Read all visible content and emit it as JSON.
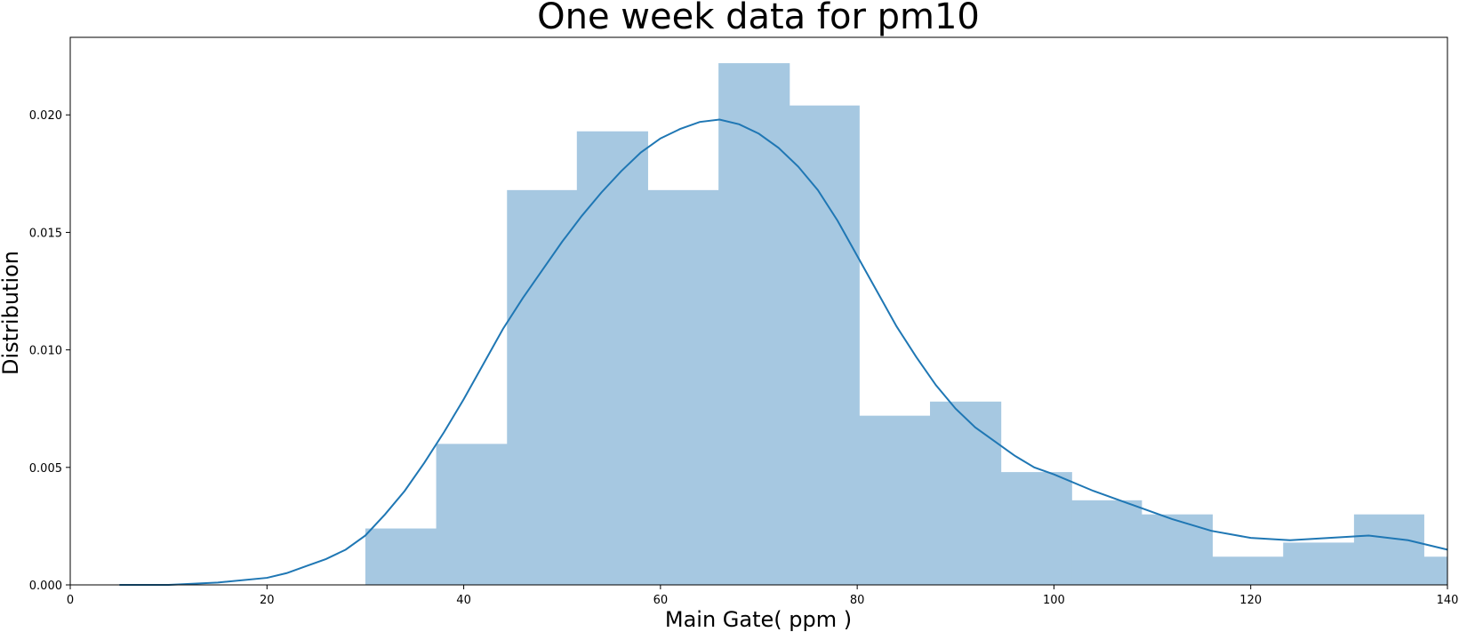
{
  "chart_data": {
    "type": "bar",
    "title": "One week data for pm10",
    "xlabel": "Main Gate( ppm )",
    "ylabel": "Distribution",
    "xlim": [
      0,
      140
    ],
    "ylim": [
      0,
      0.0233
    ],
    "x_ticks": [
      "0",
      "20",
      "40",
      "60",
      "80",
      "100",
      "120",
      "140"
    ],
    "y_ticks": [
      "0.000",
      "0.005",
      "0.010",
      "0.015",
      "0.020"
    ],
    "grid": false,
    "legend": "none",
    "bar_color": "#a6c8e1",
    "line_color": "#1f77b4",
    "histogram": [
      {
        "x0": 30.0,
        "x1": 37.2,
        "density": 0.0024
      },
      {
        "x0": 37.2,
        "x1": 44.4,
        "density": 0.006
      },
      {
        "x0": 44.4,
        "x1": 51.5,
        "density": 0.0168
      },
      {
        "x0": 51.5,
        "x1": 58.7,
        "density": 0.0193
      },
      {
        "x0": 58.7,
        "x1": 65.9,
        "density": 0.0168
      },
      {
        "x0": 65.9,
        "x1": 73.1,
        "density": 0.0222
      },
      {
        "x0": 73.1,
        "x1": 80.2,
        "density": 0.0204
      },
      {
        "x0": 80.2,
        "x1": 87.4,
        "density": 0.0072
      },
      {
        "x0": 87.4,
        "x1": 94.6,
        "density": 0.0078
      },
      {
        "x0": 94.6,
        "x1": 101.8,
        "density": 0.0048
      },
      {
        "x0": 101.8,
        "x1": 108.9,
        "density": 0.0036
      },
      {
        "x0": 108.9,
        "x1": 116.1,
        "density": 0.003
      },
      {
        "x0": 116.1,
        "x1": 123.3,
        "density": 0.0012
      },
      {
        "x0": 123.3,
        "x1": 130.5,
        "density": 0.0018
      },
      {
        "x0": 130.5,
        "x1": 137.6,
        "density": 0.003
      },
      {
        "x0": 137.6,
        "x1": 140.0,
        "density": 0.0012
      }
    ],
    "kde": {
      "x": [
        5,
        10,
        15,
        20,
        22,
        24,
        26,
        28,
        30,
        32,
        34,
        36,
        38,
        40,
        42,
        44,
        46,
        48,
        50,
        52,
        54,
        56,
        58,
        60,
        62,
        64,
        66,
        68,
        70,
        72,
        74,
        76,
        78,
        80,
        82,
        84,
        86,
        88,
        90,
        92,
        94,
        96,
        98,
        100,
        104,
        108,
        112,
        116,
        120,
        124,
        128,
        132,
        136,
        140
      ],
      "y": [
        0.0,
        0.0,
        0.0001,
        0.0003,
        0.0005,
        0.0008,
        0.0011,
        0.0015,
        0.0021,
        0.003,
        0.004,
        0.0052,
        0.0065,
        0.0079,
        0.0094,
        0.0109,
        0.0122,
        0.0134,
        0.0146,
        0.0157,
        0.0167,
        0.0176,
        0.0184,
        0.019,
        0.0194,
        0.0197,
        0.0198,
        0.0196,
        0.0192,
        0.0186,
        0.0178,
        0.0168,
        0.0155,
        0.014,
        0.0125,
        0.011,
        0.0097,
        0.0085,
        0.0075,
        0.0067,
        0.0061,
        0.0055,
        0.005,
        0.0047,
        0.004,
        0.0034,
        0.0028,
        0.0023,
        0.002,
        0.0019,
        0.002,
        0.0021,
        0.0019,
        0.0015
      ]
    }
  }
}
